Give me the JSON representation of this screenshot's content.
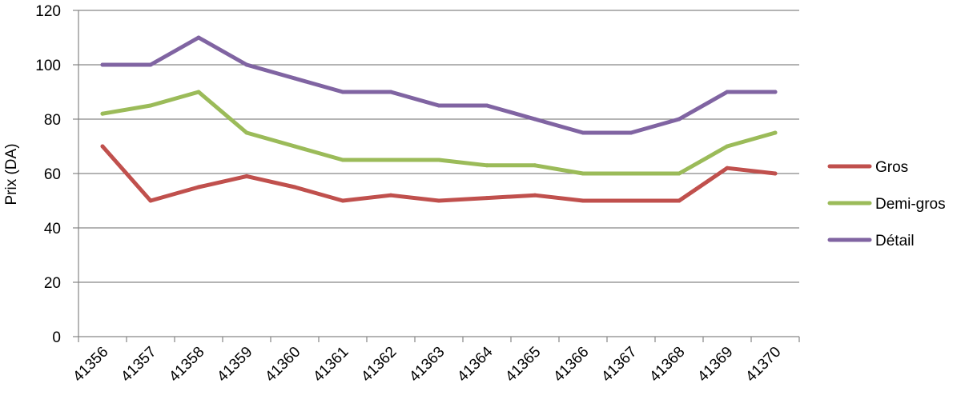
{
  "chart_data": {
    "type": "line",
    "title": "",
    "xlabel": "",
    "ylabel": "Prix (DA)",
    "ylim": [
      0,
      120
    ],
    "yticks": [
      "0",
      "20",
      "40",
      "60",
      "80",
      "100",
      "120"
    ],
    "categories": [
      "41356",
      "41357",
      "41358",
      "41359",
      "41360",
      "41361",
      "41362",
      "41363",
      "41364",
      "41365",
      "41366",
      "41367",
      "41368",
      "41369",
      "41370"
    ],
    "grid": "horizontal",
    "legend_position": "right",
    "series": [
      {
        "name": "Gros",
        "color": "#c0504d",
        "values": [
          70,
          50,
          55,
          59,
          55,
          50,
          52,
          50,
          51,
          52,
          50,
          50,
          50,
          62,
          60
        ]
      },
      {
        "name": "Demi-gros",
        "color": "#9bbb59",
        "values": [
          82,
          85,
          90,
          75,
          70,
          65,
          65,
          65,
          63,
          63,
          60,
          60,
          60,
          70,
          75
        ]
      },
      {
        "name": "Détail",
        "color": "#8064a2",
        "values": [
          100,
          100,
          110,
          100,
          95,
          90,
          90,
          85,
          85,
          80,
          75,
          75,
          80,
          90,
          90
        ]
      }
    ]
  }
}
